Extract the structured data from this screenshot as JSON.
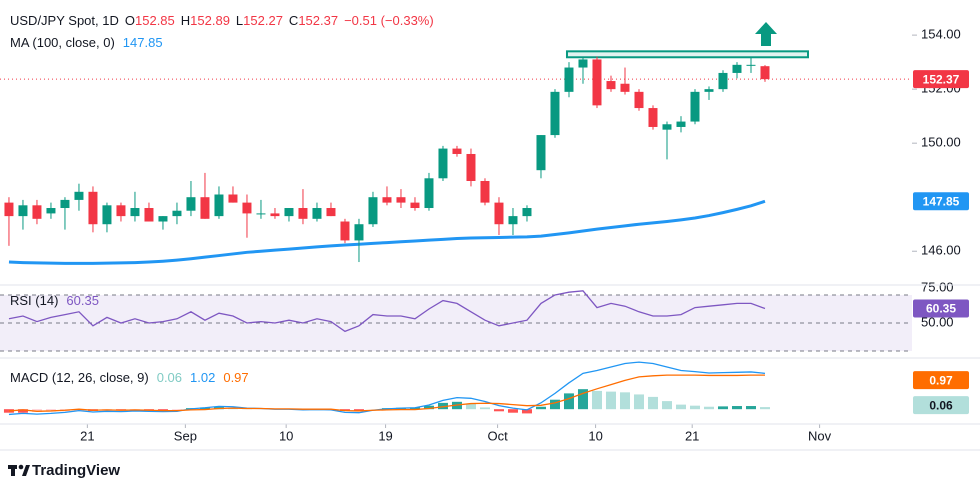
{
  "chart_data": {
    "type": "candlestick",
    "title": "USD/JPY Spot, 1D",
    "ohlc_header": [
      {
        "label": "O",
        "value": 152.85
      },
      {
        "label": "H",
        "value": 152.89
      },
      {
        "label": "L",
        "value": 152.27
      },
      {
        "label": "C",
        "value": 152.37
      }
    ],
    "change": "−0.51 (−0.33%)",
    "up_color": "#089981",
    "down_color": "#f23645",
    "open": [
      147.8,
      147.3,
      147.7,
      147.4,
      147.6,
      147.9,
      148.2,
      147.0,
      147.7,
      147.3,
      147.6,
      147.1,
      147.3,
      147.5,
      148.0,
      147.3,
      148.1,
      147.8,
      147.4,
      147.4,
      147.3,
      147.6,
      147.2,
      147.6,
      147.1,
      146.4,
      147.0,
      148.0,
      148.0,
      147.8,
      147.6,
      148.7,
      149.8,
      149.6,
      148.6,
      147.8,
      147.0,
      147.3,
      149.0,
      150.3,
      151.9,
      152.8,
      153.1,
      152.3,
      152.2,
      151.9,
      151.3,
      150.5,
      150.6,
      150.8,
      151.9,
      152.0,
      152.6,
      152.9,
      152.85
    ],
    "high": [
      148.0,
      147.9,
      147.9,
      147.8,
      148.0,
      148.5,
      148.4,
      147.8,
      147.8,
      148.2,
      147.8,
      147.3,
      147.8,
      148.6,
      148.9,
      148.4,
      148.4,
      148.1,
      147.9,
      147.6,
      147.6,
      148.3,
      147.8,
      147.8,
      147.2,
      147.2,
      148.2,
      148.4,
      148.3,
      148.0,
      148.9,
      149.9,
      149.9,
      149.8,
      148.7,
      148.0,
      147.6,
      147.7,
      150.3,
      152.0,
      153.0,
      153.2,
      153.2,
      152.5,
      152.8,
      152.0,
      151.4,
      150.8,
      151.0,
      152.0,
      152.1,
      152.7,
      153.0,
      153.2,
      152.89
    ],
    "low": [
      146.2,
      146.8,
      147.0,
      147.2,
      146.8,
      147.5,
      146.7,
      146.7,
      147.1,
      147.1,
      147.1,
      146.8,
      147.0,
      147.3,
      147.2,
      147.2,
      147.8,
      146.5,
      147.2,
      147.2,
      147.1,
      147.0,
      147.1,
      147.3,
      146.3,
      145.6,
      146.9,
      147.7,
      147.6,
      147.5,
      147.5,
      148.6,
      149.5,
      148.4,
      147.7,
      146.6,
      146.6,
      147.1,
      148.7,
      150.2,
      151.7,
      152.2,
      151.3,
      151.9,
      151.8,
      151.2,
      150.5,
      149.4,
      150.4,
      150.7,
      151.6,
      151.9,
      152.4,
      152.6,
      152.27
    ],
    "close": [
      147.3,
      147.7,
      147.2,
      147.6,
      147.9,
      148.2,
      147.0,
      147.7,
      147.3,
      147.6,
      147.1,
      147.3,
      147.5,
      148.0,
      147.2,
      148.1,
      147.8,
      147.4,
      147.4,
      147.3,
      147.6,
      147.2,
      147.6,
      147.3,
      146.4,
      147.0,
      148.0,
      147.8,
      147.8,
      147.6,
      148.7,
      149.8,
      149.6,
      148.6,
      147.8,
      147.0,
      147.3,
      147.6,
      150.3,
      151.9,
      152.8,
      153.1,
      151.4,
      152.0,
      151.9,
      151.3,
      150.6,
      150.7,
      150.8,
      151.9,
      152.0,
      152.6,
      152.9,
      152.9,
      152.37
    ],
    "last": 152.37,
    "ylim": [
      144.75,
      155.3
    ],
    "yticks": [
      {
        "value": 154,
        "label": "154.00"
      },
      {
        "value": 152,
        "label": "152.00"
      },
      {
        "value": 150,
        "label": "150.00"
      },
      {
        "value": 146,
        "label": "146.00"
      }
    ],
    "xlim": [
      -0.64,
      64.5
    ],
    "xticks": [
      {
        "value": 5.6,
        "label": "21"
      },
      {
        "value": 12.6,
        "label": "Sep"
      },
      {
        "value": 19.8,
        "label": "10"
      },
      {
        "value": 26.9,
        "label": "19"
      },
      {
        "value": 34.9,
        "label": "Oct"
      },
      {
        "value": 41.9,
        "label": "10"
      },
      {
        "value": 48.8,
        "label": "21"
      },
      {
        "value": 57.9,
        "label": "Nov"
      }
    ],
    "resistance": [
      153.18,
      153.4
    ],
    "ma": {
      "name": "MA (100, close, 0)",
      "value": 147.85,
      "color": "#2196f3",
      "values": [
        145.6,
        145.58,
        145.57,
        145.56,
        145.55,
        145.55,
        145.55,
        145.56,
        145.57,
        145.58,
        145.6,
        145.63,
        145.67,
        145.72,
        145.78,
        145.84,
        145.9,
        145.96,
        146.0,
        146.04,
        146.08,
        146.12,
        146.16,
        146.2,
        146.23,
        146.26,
        146.29,
        146.32,
        146.35,
        146.38,
        146.41,
        146.44,
        146.47,
        146.49,
        146.5,
        146.51,
        146.52,
        146.53,
        146.56,
        146.62,
        146.68,
        146.75,
        146.82,
        146.88,
        146.94,
        147.0,
        147.05,
        147.1,
        147.16,
        147.23,
        147.32,
        147.43,
        147.55,
        147.68,
        147.85
      ]
    },
    "rsi": {
      "name": "RSI (14)",
      "value": 60.35,
      "color": "#7e57c2",
      "ylim": [
        27.5,
        75
      ],
      "yticks": [
        {
          "value": 75,
          "label": "75.00"
        },
        {
          "value": 50,
          "label": "50.00"
        }
      ],
      "levels": [
        70,
        50,
        30
      ],
      "values": [
        53,
        55,
        51,
        54,
        56,
        58,
        48,
        54,
        50,
        53,
        50,
        51,
        53,
        58,
        52,
        57,
        55,
        50,
        51,
        50,
        52,
        50,
        53,
        51,
        44,
        48,
        56,
        55,
        55,
        53,
        60,
        66,
        64,
        58,
        52,
        48,
        50,
        52,
        64,
        70,
        72,
        73,
        61,
        64,
        62,
        58,
        55,
        55,
        56,
        61,
        62,
        63,
        64,
        64,
        60.35
      ]
    },
    "macd": {
      "name": "MACD (12, 26, close, 9)",
      "ylim": [
        -0.45,
        1.4
      ],
      "histogram": {
        "value": 0.06,
        "values": [
          -0.1,
          -0.1,
          -0.08,
          -0.07,
          -0.06,
          -0.04,
          -0.05,
          -0.04,
          -0.04,
          -0.03,
          -0.03,
          -0.03,
          -0.02,
          0.03,
          0.05,
          0.06,
          0.04,
          0.01,
          0.0,
          -0.01,
          -0.01,
          -0.02,
          -0.01,
          -0.02,
          -0.05,
          -0.05,
          0.0,
          0.03,
          0.04,
          0.05,
          0.1,
          0.18,
          0.21,
          0.15,
          0.05,
          -0.06,
          -0.1,
          -0.12,
          0.07,
          0.27,
          0.45,
          0.57,
          0.52,
          0.5,
          0.48,
          0.42,
          0.35,
          0.23,
          0.13,
          0.1,
          0.07,
          0.08,
          0.09,
          0.09,
          0.06
        ]
      },
      "macd_line": {
        "value": 1.02,
        "color": "#2196f3",
        "values": [
          -0.15,
          -0.12,
          -0.14,
          -0.12,
          -0.09,
          -0.04,
          -0.08,
          -0.06,
          -0.07,
          -0.05,
          -0.06,
          -0.07,
          -0.06,
          0.01,
          0.04,
          0.08,
          0.07,
          0.03,
          0.02,
          0.0,
          0.0,
          -0.02,
          -0.01,
          -0.02,
          -0.09,
          -0.1,
          -0.03,
          0.01,
          0.03,
          0.04,
          0.12,
          0.25,
          0.33,
          0.31,
          0.22,
          0.1,
          0.03,
          -0.02,
          0.18,
          0.45,
          0.75,
          1.02,
          1.1,
          1.2,
          1.3,
          1.34,
          1.3,
          1.2,
          1.1,
          1.07,
          1.03,
          1.04,
          1.05,
          1.06,
          1.02
        ]
      },
      "signal_line": {
        "value": 0.97,
        "color": "#ff6d00",
        "values": [
          -0.05,
          -0.02,
          -0.06,
          -0.05,
          -0.03,
          0.0,
          -0.03,
          -0.02,
          -0.03,
          -0.02,
          -0.03,
          -0.04,
          -0.04,
          -0.02,
          -0.01,
          0.02,
          0.03,
          0.02,
          0.02,
          0.01,
          0.01,
          0.0,
          0.0,
          0.0,
          -0.04,
          -0.05,
          -0.03,
          -0.02,
          -0.01,
          -0.01,
          0.02,
          0.07,
          0.12,
          0.16,
          0.17,
          0.16,
          0.13,
          0.1,
          0.11,
          0.18,
          0.3,
          0.45,
          0.58,
          0.7,
          0.82,
          0.92,
          0.95,
          0.97,
          0.97,
          0.97,
          0.96,
          0.96,
          0.96,
          0.97,
          0.97
        ]
      }
    }
  },
  "brand": "TradingView"
}
